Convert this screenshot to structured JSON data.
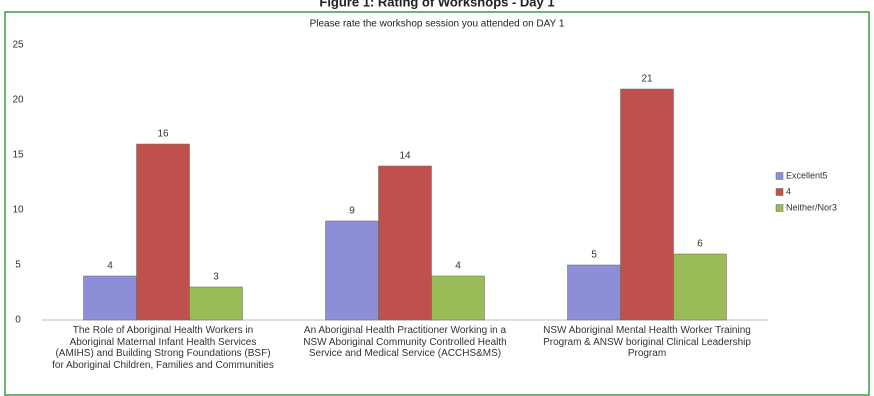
{
  "chart_data": {
    "type": "bar",
    "title": "Figure 1: Rating of Workshops - Day 1",
    "subtitle": "Please rate the workshop session you attended on DAY 1",
    "categories": [
      "The Role of Aboriginal Health Workers in Aboriginal Maternal Infant Health Services (AMIHS) and Building Strong Foundations (BSF) for Aboriginal Children, Families and Communities",
      "An Aboriginal Health Practitioner Working in a NSW Aboriginal Community Controlled Health Service and Medical Service (ACCHS&MS)",
      "NSW Aboriginal Mental Health Worker Training Program & ANSW boriginal Clinical Leadership Program"
    ],
    "series": [
      {
        "name": "Excellent5",
        "color": "#8e8ed8",
        "values": [
          4,
          9,
          5
        ]
      },
      {
        "name": "4",
        "color": "#c0504d",
        "values": [
          16,
          14,
          21
        ]
      },
      {
        "name": "Neither/Nor3",
        "color": "#9bbb59",
        "values": [
          3,
          4,
          6
        ]
      }
    ],
    "ylim": [
      0,
      25
    ],
    "yticks": [
      0,
      5,
      10,
      15,
      20,
      25
    ],
    "grid": false,
    "legend": "right"
  }
}
